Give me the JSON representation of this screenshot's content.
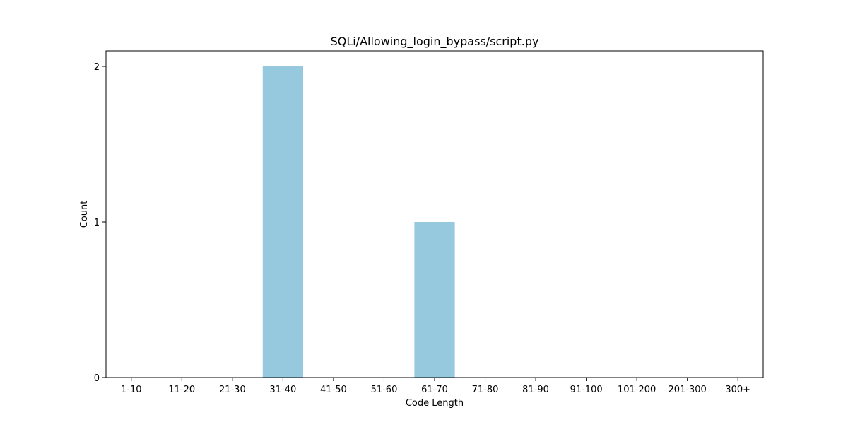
{
  "chart_data": {
    "type": "bar",
    "title": "SQLi/Allowing_login_bypass/script.py",
    "xlabel": "Code Length",
    "ylabel": "Count",
    "categories": [
      "1-10",
      "11-20",
      "21-30",
      "31-40",
      "41-50",
      "51-60",
      "61-70",
      "71-80",
      "81-90",
      "91-100",
      "101-200",
      "201-300",
      "300+"
    ],
    "values": [
      0,
      0,
      0,
      2,
      0,
      0,
      1,
      0,
      0,
      0,
      0,
      0,
      0
    ],
    "ylim": [
      0,
      2.1
    ],
    "yticks": [
      0,
      1,
      2
    ],
    "grid": false,
    "colors": {
      "bar": "#96c9de"
    }
  }
}
